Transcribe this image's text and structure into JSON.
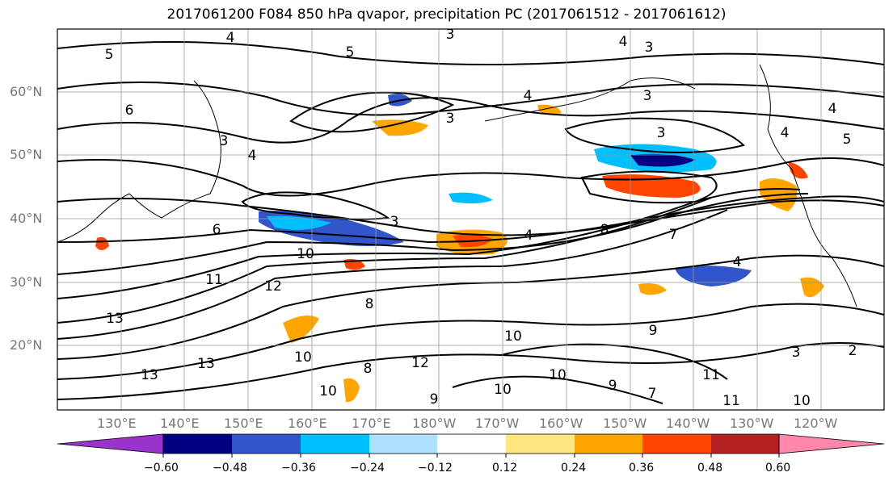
{
  "title": "2017061200 F084 850 hPa qvapor, precipitation PC (2017061512 - 2017061612)",
  "lat_labels": [
    "60°N",
    "50°N",
    "40°N",
    "30°N",
    "20°N"
  ],
  "lon_labels": [
    "130°E",
    "140°E",
    "150°E",
    "160°E",
    "170°E",
    "180°W",
    "170°W",
    "160°W",
    "150°W",
    "140°W",
    "130°W",
    "120°W"
  ],
  "contour_labels": [
    "4",
    "5",
    "3",
    "3",
    "4",
    "5",
    "4",
    "3",
    "6",
    "3",
    "4",
    "4",
    "3",
    "5",
    "3",
    "6",
    "4",
    "3",
    "4",
    "8",
    "7",
    "4",
    "10",
    "12",
    "11",
    "13",
    "8",
    "10",
    "9",
    "10",
    "13",
    "10",
    "11",
    "12",
    "13",
    "9",
    "10",
    "10",
    "9",
    "8",
    "7",
    "11",
    "10",
    "3",
    "2"
  ],
  "colorbar": {
    "ticks": [
      "−0.60",
      "−0.48",
      "−0.36",
      "−0.24",
      "−0.12",
      "0.12",
      "0.24",
      "0.36",
      "0.48",
      "0.60"
    ],
    "colors": [
      "#000080",
      "#3355cc",
      "#00bfff",
      "#b0e0ff",
      "#ffffff",
      "#ffe680",
      "#ffa500",
      "#ff4500",
      "#b22222"
    ],
    "under_color": "#9933cc",
    "over_color": "#ff88aa"
  }
}
